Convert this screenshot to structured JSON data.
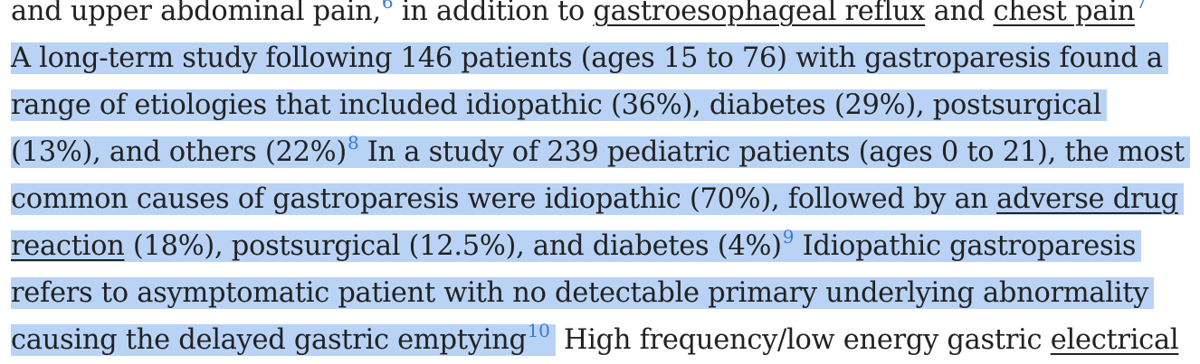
{
  "article": {
    "line1": {
      "t1": "and upper abdominal pain,",
      "ref1": "6",
      "t2": " in addition to ",
      "link1": "gastroesophageal reflux",
      "t3": " and ",
      "link2": "chest pain",
      "ref2": "7"
    },
    "line2": "A long-term study following 146 patients (ages 15 to 76) with gastroparesis found a",
    "line3": "range of etiologies that included idiopathic (36%), diabetes (29%), postsurgical",
    "line4": {
      "t1": "(13%), and others (22%)",
      "ref": "8",
      "t2": " In a study of 239 pediatric patients (ages 0 to 21), the most"
    },
    "line5": {
      "t1": "common causes of gastroparesis were idiopathic (70%), followed by an ",
      "link": "adverse drug"
    },
    "line6": {
      "link": "reaction",
      "t1": " (18%), postsurgical (12.5%), and diabetes (4%)",
      "ref": "9",
      "t2": " Idiopathic gastroparesis"
    },
    "line7": "refers to asymptomatic patient with no detectable primary underlying abnormality",
    "line8": {
      "t1": "causing the delayed gastric emptying",
      "ref": "10",
      "t2": " High frequency/low energy gastric ",
      "link": "electrical"
    }
  },
  "colors": {
    "selection": "#b9d3f6",
    "text": "#222222",
    "reference": "#3a7bd5"
  }
}
